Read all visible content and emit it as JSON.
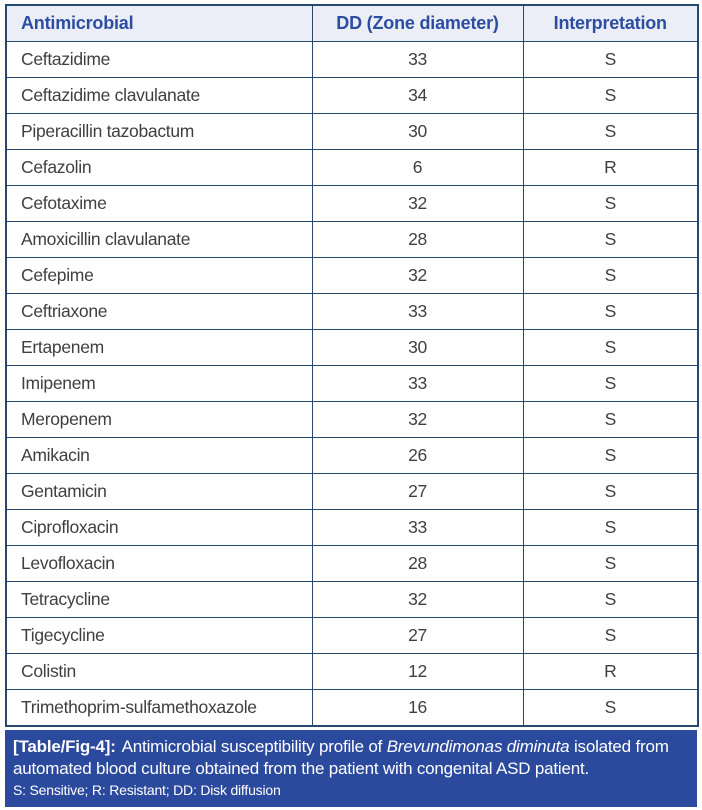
{
  "table": {
    "columns": [
      "Antimicrobial",
      "DD (Zone diameter)",
      "Interpretation"
    ],
    "rows": [
      {
        "antimicrobial": "Ceftazidime",
        "dd": "33",
        "interpretation": "S"
      },
      {
        "antimicrobial": "Ceftazidime clavulanate",
        "dd": "34",
        "interpretation": "S"
      },
      {
        "antimicrobial": "Piperacillin tazobactum",
        "dd": "30",
        "interpretation": "S"
      },
      {
        "antimicrobial": "Cefazolin",
        "dd": "6",
        "interpretation": "R"
      },
      {
        "antimicrobial": "Cefotaxime",
        "dd": "32",
        "interpretation": "S"
      },
      {
        "antimicrobial": "Amoxicillin clavulanate",
        "dd": "28",
        "interpretation": "S"
      },
      {
        "antimicrobial": "Cefepime",
        "dd": "32",
        "interpretation": "S"
      },
      {
        "antimicrobial": "Ceftriaxone",
        "dd": "33",
        "interpretation": "S"
      },
      {
        "antimicrobial": "Ertapenem",
        "dd": "30",
        "interpretation": "S"
      },
      {
        "antimicrobial": "Imipenem",
        "dd": "33",
        "interpretation": "S"
      },
      {
        "antimicrobial": "Meropenem",
        "dd": "32",
        "interpretation": "S"
      },
      {
        "antimicrobial": "Amikacin",
        "dd": "26",
        "interpretation": "S"
      },
      {
        "antimicrobial": "Gentamicin",
        "dd": "27",
        "interpretation": "S"
      },
      {
        "antimicrobial": "Ciprofloxacin",
        "dd": "33",
        "interpretation": "S"
      },
      {
        "antimicrobial": "Levofloxacin",
        "dd": "28",
        "interpretation": "S"
      },
      {
        "antimicrobial": "Tetracycline",
        "dd": "32",
        "interpretation": "S"
      },
      {
        "antimicrobial": "Tigecycline",
        "dd": "27",
        "interpretation": "S"
      },
      {
        "antimicrobial": "Colistin",
        "dd": "12",
        "interpretation": "R"
      },
      {
        "antimicrobial": "Trimethoprim-sulfamethoxazole",
        "dd": "16",
        "interpretation": "S"
      }
    ]
  },
  "caption": {
    "label": "[Table/Fig-4]:",
    "text_before_italic": "Antimicrobial susceptibility profile of ",
    "italic_text": "Brevundimonas diminuta",
    "text_after_italic": " isolated from automated blood culture obtained from the patient with congenital ASD patient.",
    "footnote": "S: Sensitive; R: Resistant; DD: Disk diffusion"
  },
  "colors": {
    "border": "#27496E",
    "header_bg": "#ECEEF7",
    "header_text": "#2C4DA0",
    "body_text": "#3F3F3F",
    "caption_bg": "#2B4A9D",
    "caption_text": "#FFFFFF"
  }
}
